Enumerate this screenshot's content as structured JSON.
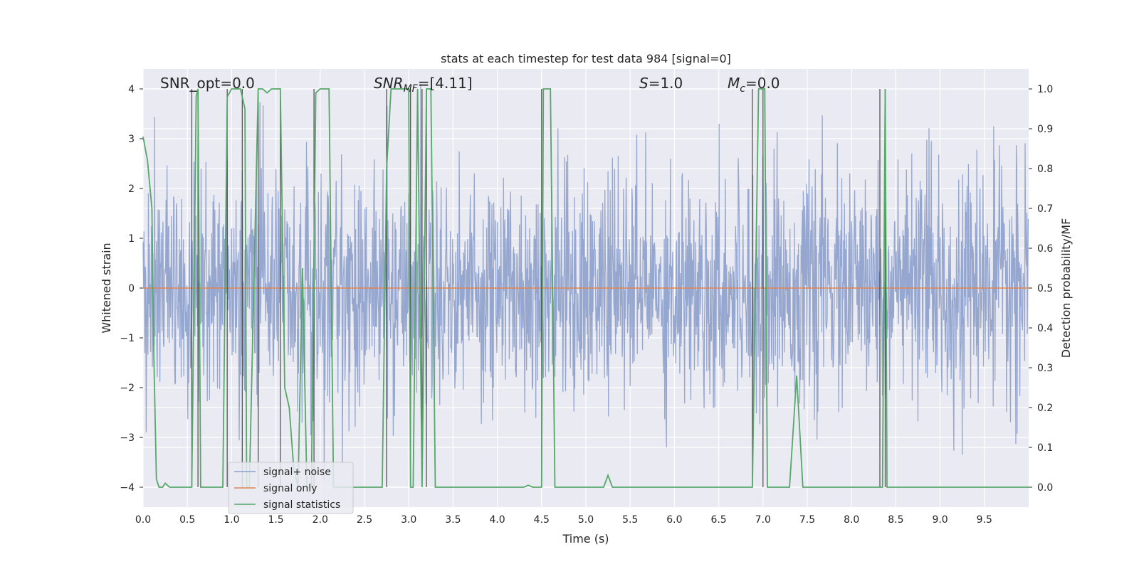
{
  "chart_data": {
    "type": "line",
    "title": "stats at each timestep for test data 984 [signal=0]",
    "xlabel": "Time (s)",
    "ylabel": "Whitened strain",
    "y2label": "Detection probability/MF",
    "xlim": [
      0.0,
      10.0
    ],
    "ylim": [
      -4.4,
      4.4
    ],
    "y2lim": [
      -0.05,
      1.05
    ],
    "xticks": [
      "0.0",
      "0.5",
      "1.0",
      "1.5",
      "2.0",
      "2.5",
      "3.0",
      "3.5",
      "4.0",
      "4.5",
      "5.0",
      "5.5",
      "6.0",
      "6.5",
      "7.0",
      "7.5",
      "8.0",
      "8.5",
      "9.0",
      "9.5"
    ],
    "yticks": [
      "4",
      "3",
      "2",
      "1",
      "0",
      "−1",
      "−2",
      "−3",
      "−4"
    ],
    "y2ticks": [
      "1.0",
      "0.9",
      "0.8",
      "0.7",
      "0.6",
      "0.5",
      "0.4",
      "0.3",
      "0.2",
      "0.1",
      "0.0"
    ],
    "grid": true,
    "legend_position": "lower-left",
    "annotations": {
      "snr_opt": "SNR_opt=0.0",
      "snr_mf_prefix": "SNR",
      "snr_mf_sub": "MF",
      "snr_mf_suffix": "=[4.11]",
      "s_prefix": "S",
      "s_suffix": "=1.0",
      "mc_prefix": "M",
      "mc_sub": "c",
      "mc_suffix": "=0.0"
    },
    "series": [
      {
        "name": "signal+ noise",
        "color": "#8da0cb",
        "kind": "noise",
        "axis": "left"
      },
      {
        "name": "signal only",
        "color": "#dd8452",
        "kind": "zero",
        "axis": "left"
      },
      {
        "name": "signal statistics",
        "color": "#55a868",
        "kind": "probability",
        "axis": "right",
        "x": [
          0.0,
          0.05,
          0.1,
          0.12,
          0.15,
          0.18,
          0.2,
          0.22,
          0.25,
          0.3,
          0.5,
          0.55,
          0.6,
          0.62,
          0.65,
          0.7,
          0.9,
          0.95,
          1.0,
          1.02,
          1.05,
          1.1,
          1.15,
          1.17,
          1.2,
          1.3,
          1.35,
          1.4,
          1.45,
          1.5,
          1.55,
          1.6,
          1.65,
          1.7,
          1.75,
          1.8,
          1.85,
          1.9,
          1.95,
          2.0,
          2.05,
          2.1,
          2.15,
          2.2,
          2.25,
          2.5,
          2.7,
          2.75,
          2.8,
          2.85,
          2.9,
          3.0,
          3.02,
          3.05,
          3.1,
          3.15,
          3.2,
          3.25,
          3.3,
          3.5,
          4.0,
          4.3,
          4.35,
          4.4,
          4.45,
          4.5,
          4.52,
          4.55,
          4.6,
          4.65,
          4.7,
          5.0,
          5.2,
          5.25,
          5.3,
          5.5,
          6.0,
          6.5,
          6.88,
          6.95,
          7.0,
          7.02,
          7.05,
          7.1,
          7.2,
          7.3,
          7.38,
          7.45,
          7.5,
          8.0,
          8.3,
          8.35,
          8.38,
          8.4,
          8.45,
          8.5,
          9.0,
          9.5,
          10.0
        ],
        "y": [
          0.88,
          0.82,
          0.7,
          0.35,
          0.02,
          0.0,
          0.0,
          0.0,
          0.01,
          0.0,
          0.0,
          0.0,
          0.98,
          1.0,
          0.0,
          0.0,
          0.0,
          0.98,
          1.0,
          1.0,
          1.0,
          1.0,
          0.95,
          0.0,
          0.0,
          1.0,
          1.0,
          0.99,
          1.0,
          1.0,
          1.0,
          0.25,
          0.2,
          0.05,
          0.0,
          0.55,
          0.0,
          0.0,
          0.99,
          1.0,
          1.0,
          1.0,
          0.0,
          0.0,
          0.0,
          0.0,
          0.0,
          0.8,
          1.0,
          1.0,
          1.0,
          1.0,
          0.0,
          0.0,
          1.0,
          0.0,
          1.0,
          1.0,
          0.0,
          0.0,
          0.0,
          0.0,
          0.005,
          0.0,
          0.0,
          0.0,
          1.0,
          1.0,
          1.0,
          0.0,
          0.0,
          0.0,
          0.0,
          0.03,
          0.0,
          0.0,
          0.0,
          0.0,
          0.0,
          1.0,
          1.0,
          1.0,
          0.0,
          0.0,
          0.0,
          0.0,
          0.28,
          0.0,
          0.0,
          0.0,
          0.0,
          0.0,
          1.0,
          0.0,
          0.0,
          0.0,
          0.0,
          0.0,
          0.0
        ]
      },
      {
        "name": "",
        "color": "#3c3c3c",
        "kind": "event-markers",
        "axis": "right",
        "x": [
          0.55,
          0.62,
          0.95,
          1.12,
          1.3,
          1.55,
          1.93,
          2.75,
          3.02,
          3.15,
          3.2,
          4.5,
          6.88,
          7.0,
          8.32,
          8.38
        ]
      }
    ]
  }
}
